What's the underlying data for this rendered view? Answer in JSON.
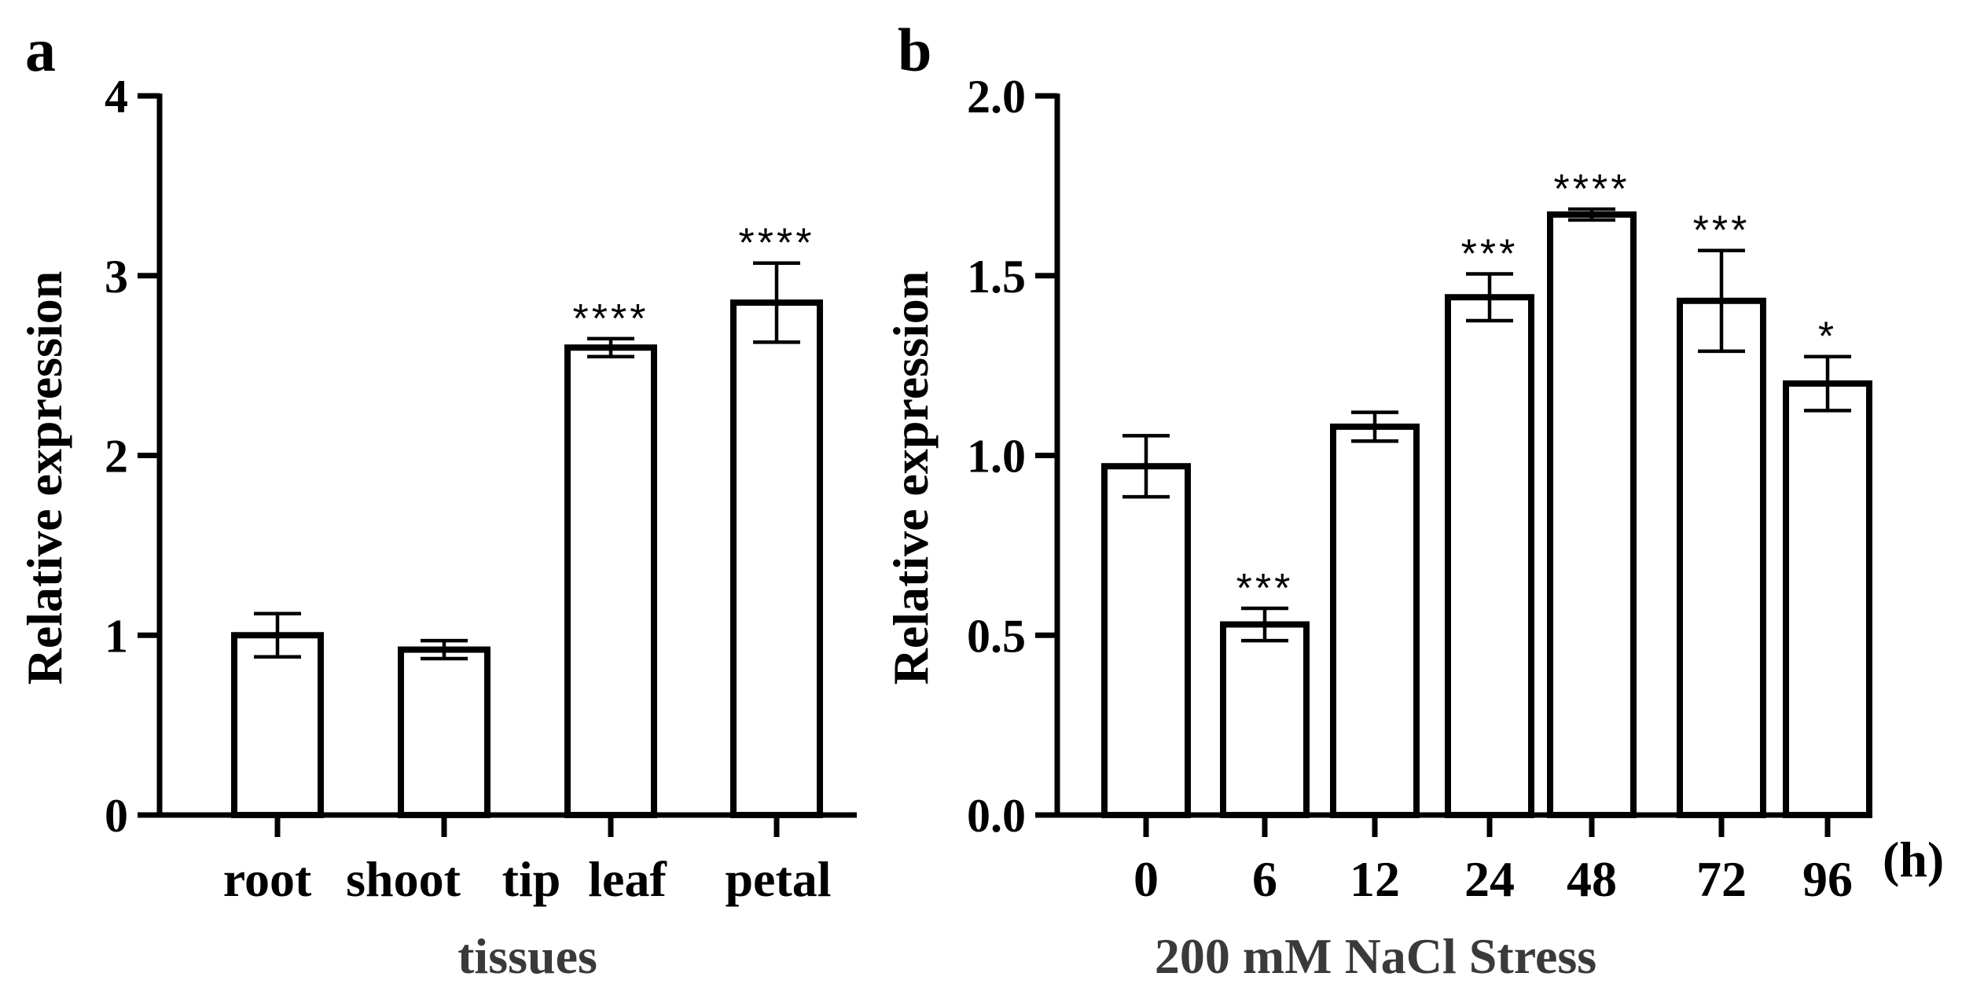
{
  "chart_data": [
    {
      "type": "bar",
      "panel": "a",
      "title": "",
      "xlabel": "tissues",
      "ylabel": "Relative expression",
      "ylim": [
        0,
        4
      ],
      "yticks": [
        "0",
        "1",
        "2",
        "3",
        "4"
      ],
      "categories": [
        "root",
        "shoot tip",
        "leaf",
        "petal"
      ],
      "category_label_parts": [
        "root",
        "shoot",
        "tip",
        "leaf",
        "petal"
      ],
      "values": [
        1.0,
        0.92,
        2.6,
        2.85
      ],
      "errors": [
        0.12,
        0.05,
        0.05,
        0.22
      ],
      "significance": [
        "",
        "",
        "****",
        "****"
      ]
    },
    {
      "type": "bar",
      "panel": "b",
      "title": "",
      "xlabel": "200 mM NaCl Stress",
      "ylabel": "Relative expression",
      "ylim": [
        0,
        2.0
      ],
      "yticks": [
        "0.0",
        "0.5",
        "1.0",
        "1.5",
        "2.0"
      ],
      "unit_label": "(h)",
      "categories": [
        "0",
        "6",
        "12",
        "24",
        "48",
        "72",
        "96"
      ],
      "values": [
        0.97,
        0.53,
        1.08,
        1.44,
        1.67,
        1.43,
        1.2
      ],
      "errors": [
        0.085,
        0.045,
        0.04,
        0.065,
        0.015,
        0.14,
        0.075
      ],
      "significance": [
        "",
        "***",
        "",
        "***",
        "****",
        "***",
        "*"
      ]
    }
  ]
}
